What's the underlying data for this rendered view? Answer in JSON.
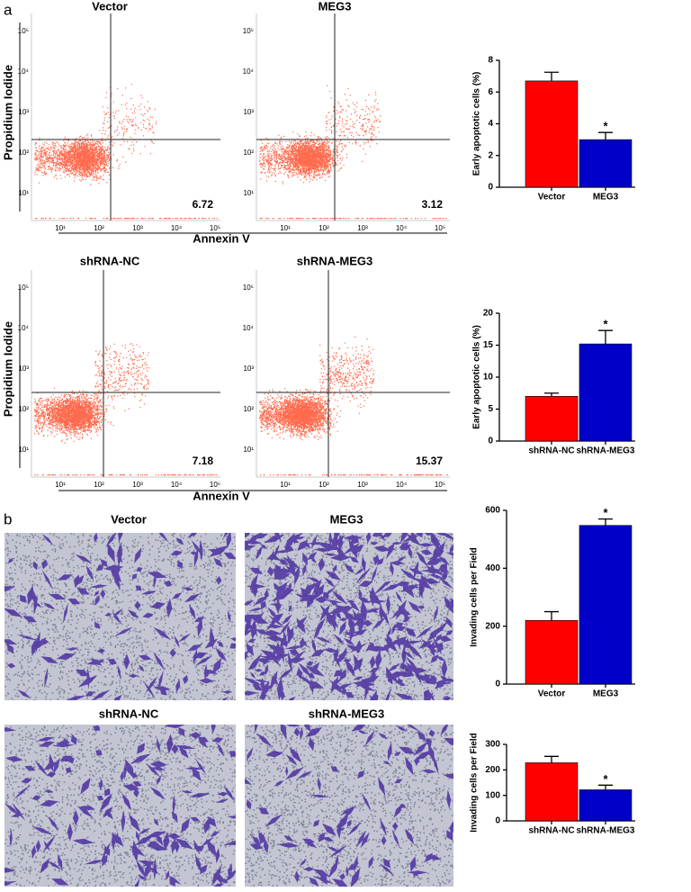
{
  "panel_labels": [
    "a",
    "b"
  ],
  "flow_cytometry": {
    "x_label": "Annexin V",
    "y_label": "Propidium Iodide",
    "tick_labels": [
      "10¹",
      "10²",
      "10³",
      "10⁴",
      "10⁵"
    ],
    "plots": [
      {
        "title": "Vector",
        "value": 6.72
      },
      {
        "title": "MEG3",
        "value": 3.12
      },
      {
        "title": "shRNA-NC",
        "value": 7.18
      },
      {
        "title": "shRNA-MEG3",
        "value": 15.37
      }
    ]
  },
  "invasion_images": {
    "titles": [
      "Vector",
      "MEG3",
      "shRNA-NC",
      "shRNA-MEG3"
    ]
  },
  "chart_data": [
    {
      "type": "bar",
      "y_label": "Early apoptotic cells (%)",
      "categories": [
        "Vector",
        "MEG3"
      ],
      "values": [
        6.7,
        3.0
      ],
      "errors": [
        0.55,
        0.45
      ],
      "colors": [
        "#ff0000",
        "#0000c8"
      ],
      "annotations": [
        null,
        "*"
      ],
      "ylim": [
        0,
        8
      ],
      "yticks": [
        0,
        2,
        4,
        6,
        8
      ]
    },
    {
      "type": "bar",
      "y_label": "Early apoptotic cells (%)",
      "categories": [
        "shRNA-NC",
        "shRNA-MEG3"
      ],
      "values": [
        7.0,
        15.2
      ],
      "errors": [
        0.5,
        2.1
      ],
      "colors": [
        "#ff0000",
        "#0000c8"
      ],
      "annotations": [
        null,
        "*"
      ],
      "ylim": [
        0,
        20
      ],
      "yticks": [
        0,
        5,
        10,
        15,
        20
      ]
    },
    {
      "type": "bar",
      "y_label": "Invading cells per Field",
      "categories": [
        "Vector",
        "MEG3"
      ],
      "values": [
        220,
        548
      ],
      "errors": [
        30,
        22
      ],
      "colors": [
        "#ff0000",
        "#0000c8"
      ],
      "annotations": [
        null,
        "*"
      ],
      "ylim": [
        0,
        600
      ],
      "yticks": [
        0,
        200,
        400,
        600
      ]
    },
    {
      "type": "bar",
      "y_label": "Invading cells per Field",
      "categories": [
        "shRNA-NC",
        "shRNA-MEG3"
      ],
      "values": [
        228,
        122
      ],
      "errors": [
        25,
        18
      ],
      "colors": [
        "#ff0000",
        "#0000c8"
      ],
      "annotations": [
        null,
        "*"
      ],
      "ylim": [
        0,
        300
      ],
      "yticks": [
        0,
        100,
        200,
        300
      ]
    }
  ]
}
